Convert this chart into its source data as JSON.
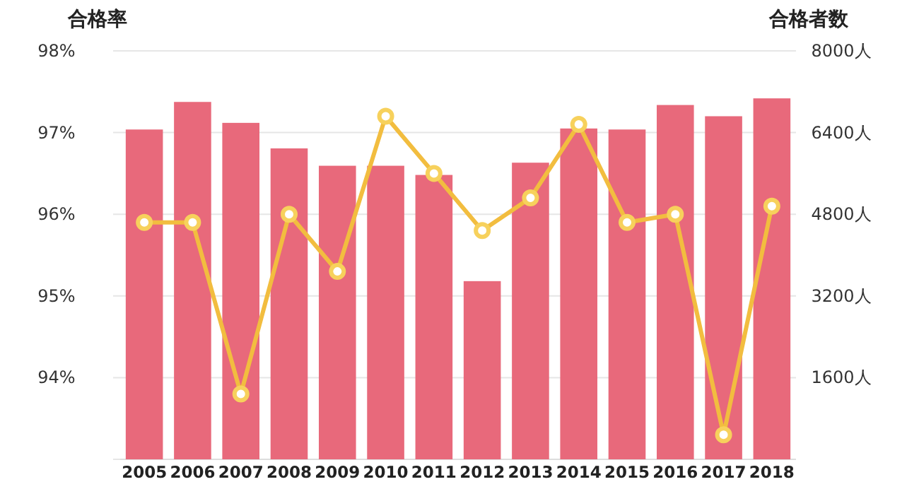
{
  "chart_data": {
    "type": "bar",
    "ylabel": "合格率",
    "y2label": "合格者数",
    "categories": [
      "2005",
      "2006",
      "2007",
      "2008",
      "2009",
      "2010",
      "2011",
      "2012",
      "2013",
      "2014",
      "2015",
      "2016",
      "2017",
      "2018"
    ],
    "series": [
      {
        "axis": "y2",
        "color": "#e8697b",
        "values": [
          6460,
          7000,
          6590,
          6090,
          5750,
          5750,
          5570,
          3490,
          5810,
          6480,
          6460,
          6940,
          6720,
          7070
        ]
      },
      {
        "type": "line",
        "axis": "y",
        "color": "#f2bd3f",
        "values": [
          95.9,
          95.9,
          93.8,
          96.0,
          95.3,
          97.2,
          96.5,
          95.8,
          96.2,
          97.1,
          95.9,
          96.0,
          93.3,
          96.1
        ]
      }
    ],
    "ylim": [
      93,
      98
    ],
    "yticks": [
      {
        "value": 93,
        "label": null
      },
      {
        "value": 94,
        "label": "94%"
      },
      {
        "value": 95,
        "label": "95%"
      },
      {
        "value": 96,
        "label": "96%"
      },
      {
        "value": 97,
        "label": "97%"
      },
      {
        "value": 98,
        "label": "98%"
      }
    ],
    "y2lim": [
      0,
      8000
    ],
    "y2ticks": [
      {
        "value": 0,
        "label": null
      },
      {
        "value": 1600,
        "label": "1600人"
      },
      {
        "value": 3200,
        "label": "3200人"
      },
      {
        "value": 4800,
        "label": "4800人"
      },
      {
        "value": 6400,
        "label": "6400人"
      },
      {
        "value": 8000,
        "label": "8000人"
      }
    ],
    "grid": "y",
    "marker": "circle"
  }
}
